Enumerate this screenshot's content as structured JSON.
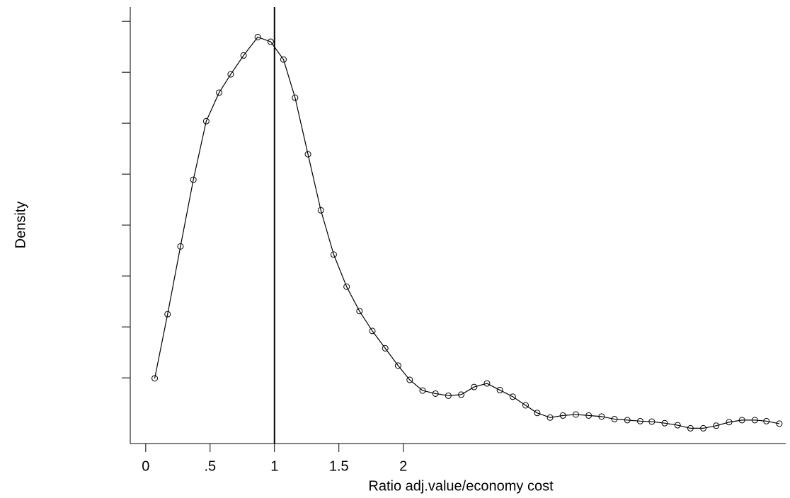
{
  "chart_data": {
    "type": "line",
    "xlabel": "Ratio adj.value/economy cost",
    "ylabel": "Density",
    "x": [
      0.07,
      0.17,
      0.27,
      0.37,
      0.47,
      0.57,
      0.66,
      0.76,
      0.87,
      0.97,
      1.07,
      1.16,
      1.26,
      1.36,
      1.46,
      1.56,
      1.66,
      1.76,
      1.86,
      1.96,
      2.05,
      2.15,
      2.25,
      2.35,
      2.45,
      2.55,
      2.65,
      2.75,
      2.85,
      2.95,
      3.04,
      3.14,
      3.24,
      3.34,
      3.44,
      3.54,
      3.64,
      3.74,
      3.84,
      3.93,
      4.03,
      4.13,
      4.23,
      4.33,
      4.43,
      4.53,
      4.63,
      4.73,
      4.82,
      4.92
    ],
    "values": [
      0.099,
      0.225,
      0.358,
      0.489,
      0.604,
      0.66,
      0.696,
      0.733,
      0.769,
      0.76,
      0.725,
      0.65,
      0.539,
      0.429,
      0.342,
      0.279,
      0.231,
      0.192,
      0.158,
      0.124,
      0.096,
      0.075,
      0.069,
      0.065,
      0.067,
      0.082,
      0.089,
      0.076,
      0.063,
      0.046,
      0.031,
      0.022,
      0.026,
      0.028,
      0.026,
      0.024,
      0.019,
      0.017,
      0.015,
      0.014,
      0.011,
      0.007,
      0.001,
      0.001,
      0.006,
      0.013,
      0.017,
      0.017,
      0.015,
      0.01
    ],
    "color": "#000000",
    "markers": true,
    "xline": 1,
    "xlim": [
      -0.12,
      4.97
    ],
    "xticks": [
      0,
      {
        "value": 0.5,
        "label": ".5"
      },
      1,
      1.5,
      2
    ],
    "ylim": [
      -0.029,
      0.828
    ],
    "yticks": [
      0.1,
      0.2,
      0.3,
      0.4,
      0.5,
      0.6,
      0.7,
      0.8
    ]
  }
}
